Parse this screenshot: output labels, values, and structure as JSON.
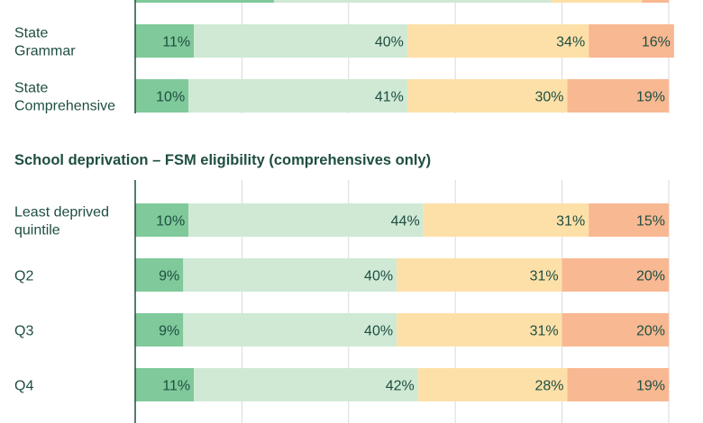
{
  "chart_data": {
    "type": "bar",
    "orientation": "horizontal",
    "stacked": true,
    "percent_scale": true,
    "xlim": [
      0,
      100
    ],
    "vertical_gridlines": true,
    "segment_colors": [
      "#7fc99a",
      "#cfe9d4",
      "#fde0a8",
      "#f8b892"
    ],
    "value_suffix": "%",
    "partial_row_top": {
      "values": [
        26,
        52,
        17,
        5
      ],
      "labels_visible": false
    },
    "groups": [
      {
        "title": "",
        "rows": [
          {
            "label_lines": [
              "State",
              "Grammar"
            ],
            "values": [
              11,
              40,
              34,
              16
            ]
          },
          {
            "label_lines": [
              "State",
              "Comprehensive"
            ],
            "values": [
              10,
              41,
              30,
              19
            ]
          }
        ]
      },
      {
        "title": "School deprivation – FSM eligibility (comprehensives only)",
        "rows": [
          {
            "label_lines": [
              "Least deprived",
              "quintile"
            ],
            "values": [
              10,
              44,
              31,
              15
            ]
          },
          {
            "label_lines": [
              "Q2"
            ],
            "values": [
              9,
              40,
              31,
              20
            ]
          },
          {
            "label_lines": [
              "Q3"
            ],
            "values": [
              9,
              40,
              31,
              20
            ]
          },
          {
            "label_lines": [
              "Q4"
            ],
            "values": [
              11,
              42,
              28,
              19
            ]
          }
        ]
      }
    ]
  }
}
